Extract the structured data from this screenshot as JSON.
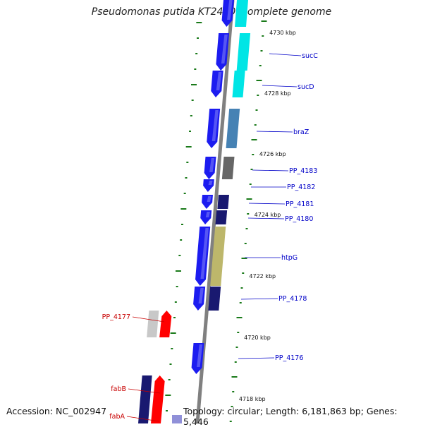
{
  "title": "Pseudomonas putida KT2440, complete genome",
  "accession": "Accession: NC_002947",
  "summary": "Topology: circular; Length: 6,181,863 bp; Genes: 5,446",
  "colors": {
    "backbone": "#808080",
    "tick": "#1a7a1a",
    "label_forward": "#0000c8",
    "label_reverse": "#c80000"
  },
  "kbp_ticks": [
    {
      "id": "4730",
      "label": "4730 kbp"
    },
    {
      "id": "4728",
      "label": "4728 kbp"
    },
    {
      "id": "4726",
      "label": "4726 kbp"
    },
    {
      "id": "4724",
      "label": "4724 kbp"
    },
    {
      "id": "4722",
      "label": "4722 kbp"
    },
    {
      "id": "4720",
      "label": "4720 kbp"
    },
    {
      "id": "4718",
      "label": "4718 kbp"
    }
  ],
  "genes": [
    {
      "id": "sucC",
      "label": "sucC",
      "strand": "forward",
      "cog_color": "#00e5e5"
    },
    {
      "id": "sucD",
      "label": "sucD",
      "strand": "forward",
      "cog_color": "#00e5e5"
    },
    {
      "id": "braZ",
      "label": "braZ",
      "strand": "forward",
      "cog_color": "#4682b4"
    },
    {
      "id": "PP_4183",
      "label": "PP_4183",
      "strand": "forward",
      "cog_color": "#666666"
    },
    {
      "id": "PP_4182",
      "label": "PP_4182",
      "strand": "forward",
      "cog_color": ""
    },
    {
      "id": "PP_4181",
      "label": "PP_4181",
      "strand": "forward",
      "cog_color": "#191970"
    },
    {
      "id": "PP_4180",
      "label": "PP_4180",
      "strand": "forward",
      "cog_color": "#191970"
    },
    {
      "id": "htpG",
      "label": "htpG",
      "strand": "forward",
      "cog_color": "#bdb76b"
    },
    {
      "id": "PP_4178",
      "label": "PP_4178",
      "strand": "forward",
      "cog_color": "#191970"
    },
    {
      "id": "PP_4177",
      "label": "PP_4177",
      "strand": "reverse",
      "cog_color": "#c8c8c8"
    },
    {
      "id": "PP_4176",
      "label": "PP_4176",
      "strand": "forward",
      "cog_color": ""
    },
    {
      "id": "fabB",
      "label": "fabB",
      "strand": "reverse",
      "cog_color": "#191970"
    },
    {
      "id": "fabA",
      "label": "fabA",
      "strand": "reverse",
      "cog_color": "#9090d8"
    }
  ]
}
